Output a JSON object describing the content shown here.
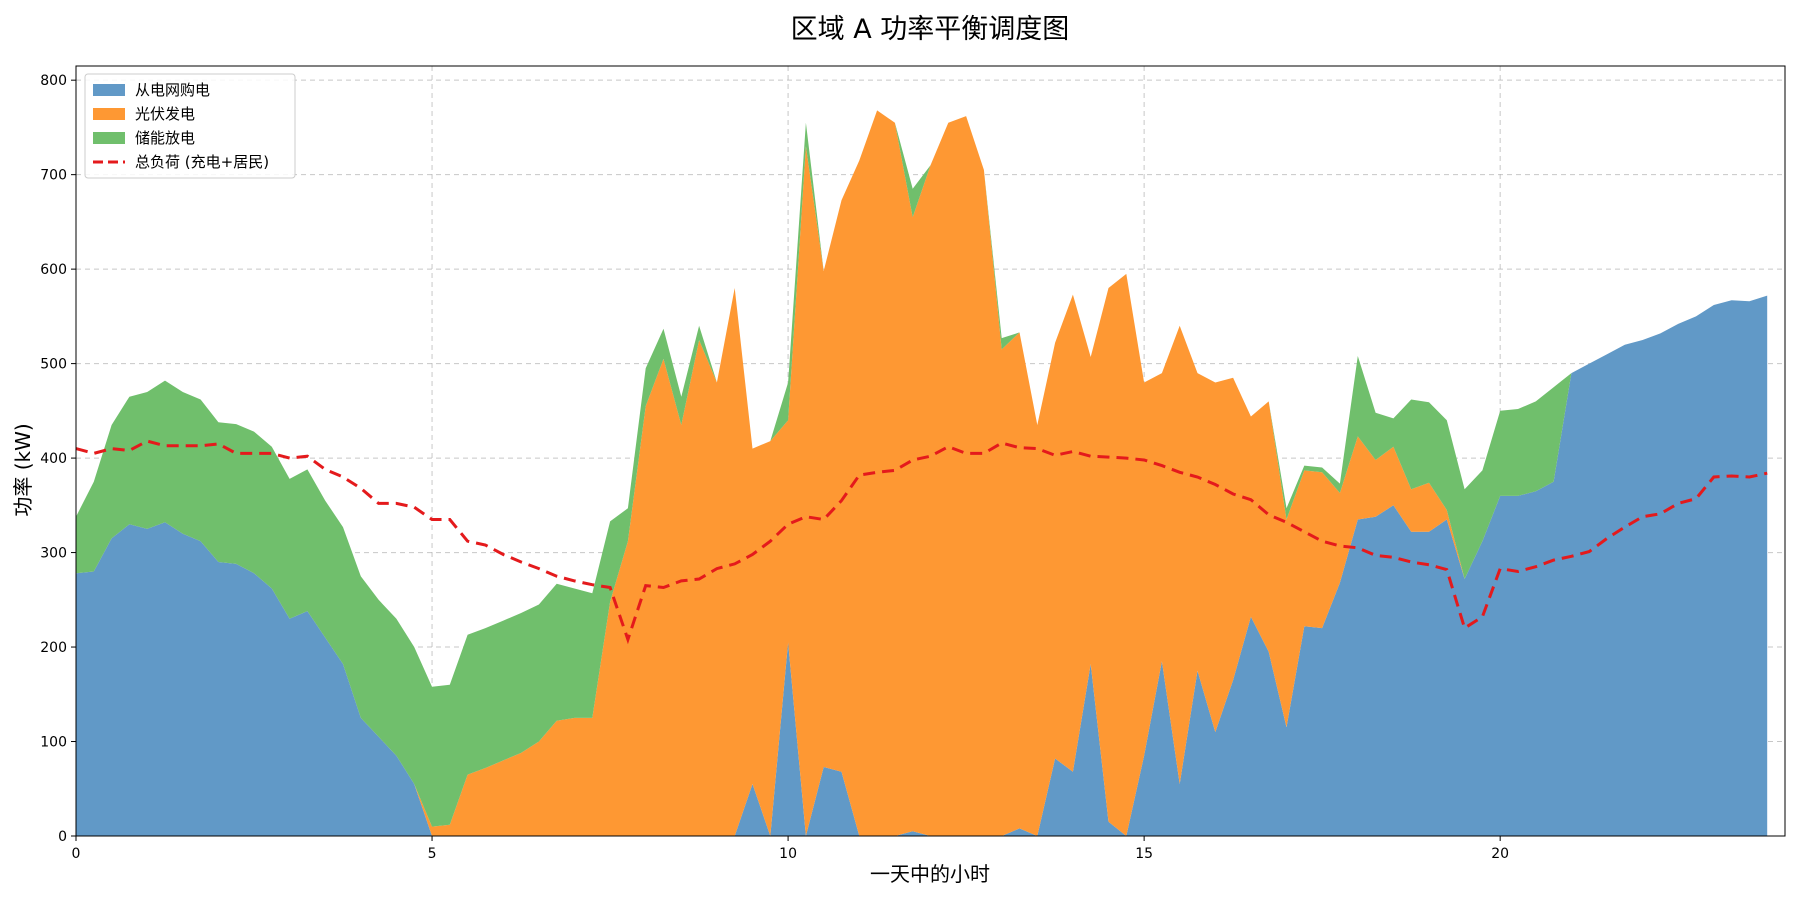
{
  "chart_data": {
    "type": "area",
    "title": "区域 A 功率平衡调度图",
    "xlabel": "一天中的小时",
    "ylabel": "功率 (kW)",
    "xlim": [
      0,
      24
    ],
    "ylim": [
      0,
      815
    ],
    "xticks": [
      0,
      5,
      10,
      15,
      20
    ],
    "yticks": [
      0,
      100,
      200,
      300,
      400,
      500,
      600,
      700,
      800
    ],
    "grid": true,
    "legend_position": "top-left",
    "x": [
      0,
      0.25,
      0.5,
      0.75,
      1,
      1.25,
      1.5,
      1.75,
      2,
      2.25,
      2.5,
      2.75,
      3,
      3.25,
      3.5,
      3.75,
      4,
      4.25,
      4.5,
      4.75,
      5,
      5.25,
      5.5,
      5.75,
      6,
      6.25,
      6.5,
      6.75,
      7,
      7.25,
      7.5,
      7.75,
      8,
      8.25,
      8.5,
      8.75,
      9,
      9.25,
      9.5,
      9.75,
      10,
      10.25,
      10.5,
      10.75,
      11,
      11.25,
      11.5,
      11.75,
      12,
      12.25,
      12.5,
      12.75,
      13,
      13.25,
      13.5,
      13.75,
      14,
      14.25,
      14.5,
      14.75,
      15,
      15.25,
      15.5,
      15.75,
      16,
      16.25,
      16.5,
      16.75,
      17,
      17.25,
      17.5,
      17.75,
      18,
      18.25,
      18.5,
      18.75,
      19,
      19.25,
      19.5,
      19.75,
      20,
      20.25,
      20.5,
      20.75,
      21,
      21.25,
      21.5,
      21.75,
      22,
      22.25,
      22.5,
      22.75,
      23,
      23.25,
      23.5,
      23.75
    ],
    "series": [
      {
        "name": "从电网购电",
        "style": "stacked-area",
        "color": "#6199c7",
        "values": [
          278,
          280,
          315,
          330,
          325,
          332,
          320,
          312,
          290,
          288,
          278,
          262,
          230,
          238,
          210,
          182,
          125,
          105,
          85,
          55,
          0,
          0,
          0,
          0,
          0,
          0,
          0,
          0,
          0,
          0,
          0,
          0,
          0,
          0,
          0,
          0,
          0,
          0,
          55,
          0,
          205,
          0,
          73,
          68,
          0,
          0,
          0,
          5,
          0,
          0,
          0,
          0,
          0,
          8,
          0,
          82,
          68,
          182,
          15,
          0,
          85,
          185,
          55,
          175,
          110,
          165,
          232,
          195,
          115,
          222,
          220,
          268,
          335,
          338,
          350,
          322,
          322,
          335,
          272,
          312,
          360,
          360,
          365,
          375,
          490,
          500,
          510,
          520,
          525,
          532,
          542,
          550,
          562,
          567,
          566,
          572
        ]
      },
      {
        "name": "光伏发电",
        "style": "stacked-area",
        "color": "#fe9833",
        "values": [
          0,
          0,
          0,
          0,
          0,
          0,
          0,
          0,
          0,
          0,
          0,
          0,
          0,
          0,
          0,
          0,
          0,
          0,
          0,
          0,
          10,
          12,
          65,
          72,
          80,
          88,
          100,
          122,
          125,
          125,
          248,
          312,
          455,
          505,
          435,
          525,
          480,
          580,
          355,
          418,
          235,
          730,
          525,
          605,
          715,
          768,
          755,
          650,
          710,
          755,
          762,
          705,
          515,
          525,
          435,
          440,
          505,
          325,
          565,
          595,
          395,
          305,
          485,
          315,
          370,
          320,
          212,
          265,
          220,
          165,
          165,
          95,
          88,
          60,
          62,
          45,
          52,
          10,
          0,
          0,
          0,
          0,
          0,
          0,
          0,
          0,
          0,
          0,
          0,
          0,
          0,
          0,
          0,
          0,
          0,
          0
        ]
      },
      {
        "name": "储能放电",
        "style": "stacked-area",
        "color": "#70bf6c",
        "values": [
          60,
          95,
          120,
          135,
          145,
          150,
          150,
          150,
          148,
          148,
          150,
          150,
          148,
          150,
          145,
          145,
          150,
          145,
          145,
          145,
          148,
          148,
          148,
          148,
          148,
          148,
          145,
          145,
          137,
          132,
          85,
          35,
          40,
          32,
          30,
          15,
          0,
          0,
          0,
          0,
          40,
          25,
          0,
          0,
          0,
          0,
          0,
          30,
          0,
          0,
          0,
          0,
          12,
          0,
          0,
          0,
          0,
          0,
          0,
          0,
          0,
          0,
          0,
          0,
          0,
          0,
          0,
          0,
          12,
          5,
          5,
          10,
          85,
          50,
          30,
          95,
          85,
          95,
          95,
          75,
          90,
          92,
          95,
          100,
          0,
          0,
          0,
          0,
          0,
          0,
          0,
          0,
          0,
          0,
          0,
          0
        ]
      },
      {
        "name": "总负荷 (充电+居民)",
        "style": "dashed-line",
        "color": "#e41a1c",
        "values": [
          410,
          405,
          410,
          408,
          418,
          413,
          413,
          413,
          415,
          405,
          405,
          405,
          400,
          402,
          388,
          380,
          368,
          352,
          352,
          348,
          335,
          335,
          312,
          308,
          298,
          290,
          283,
          275,
          270,
          266,
          263,
          208,
          265,
          263,
          270,
          272,
          283,
          288,
          298,
          312,
          330,
          338,
          335,
          355,
          382,
          385,
          387,
          398,
          402,
          412,
          405,
          405,
          416,
          411,
          410,
          403,
          407,
          402,
          401,
          400,
          398,
          392,
          385,
          380,
          372,
          362,
          356,
          340,
          332,
          322,
          312,
          307,
          305,
          297,
          295,
          290,
          287,
          282,
          220,
          232,
          283,
          280,
          285,
          292,
          296,
          301,
          315,
          327,
          338,
          341,
          352,
          357,
          380,
          381,
          380,
          384
        ]
      }
    ]
  }
}
